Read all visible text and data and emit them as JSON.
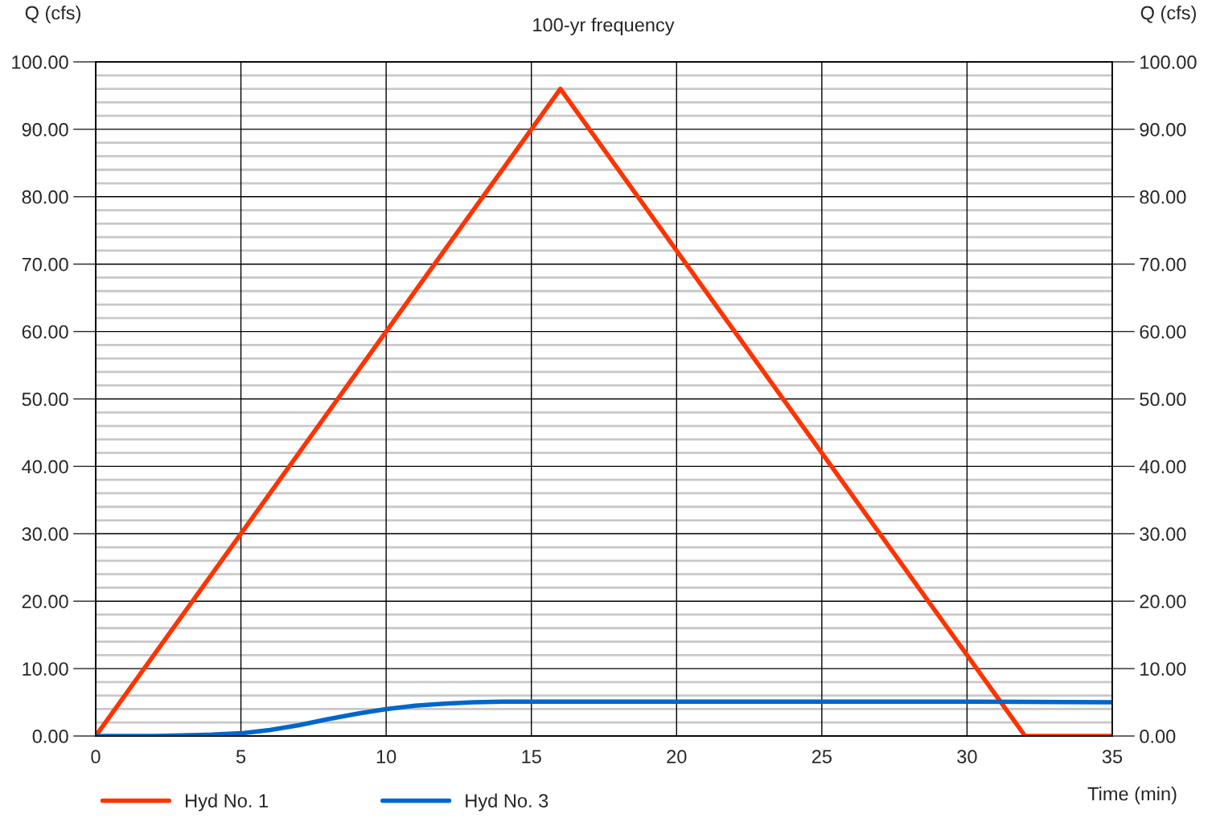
{
  "chart_data": {
    "type": "line",
    "subtitle": "100-yr frequency",
    "xlabel": "Time (min)",
    "ylabel": "Q (cfs)",
    "y2label": "Q (cfs)",
    "xlim": [
      0,
      35
    ],
    "xticks": [
      0,
      5,
      10,
      15,
      20,
      25,
      30,
      35
    ],
    "ylim": [
      0,
      100
    ],
    "yticks": [
      {
        "value": 0,
        "label": "0.00"
      },
      {
        "value": 2,
        "label": null
      },
      {
        "value": 4,
        "label": null
      },
      {
        "value": 6,
        "label": null
      },
      {
        "value": 8,
        "label": null
      },
      {
        "value": 10,
        "label": "10.00"
      },
      {
        "value": 12,
        "label": null
      },
      {
        "value": 14,
        "label": null
      },
      {
        "value": 16,
        "label": null
      },
      {
        "value": 18,
        "label": null
      },
      {
        "value": 20,
        "label": "20.00"
      },
      {
        "value": 22,
        "label": null
      },
      {
        "value": 24,
        "label": null
      },
      {
        "value": 26,
        "label": null
      },
      {
        "value": 28,
        "label": null
      },
      {
        "value": 30,
        "label": "30.00"
      },
      {
        "value": 32,
        "label": null
      },
      {
        "value": 34,
        "label": null
      },
      {
        "value": 36,
        "label": null
      },
      {
        "value": 38,
        "label": null
      },
      {
        "value": 40,
        "label": "40.00"
      },
      {
        "value": 42,
        "label": null
      },
      {
        "value": 44,
        "label": null
      },
      {
        "value": 46,
        "label": null
      },
      {
        "value": 48,
        "label": null
      },
      {
        "value": 50,
        "label": "50.00"
      },
      {
        "value": 52,
        "label": null
      },
      {
        "value": 54,
        "label": null
      },
      {
        "value": 56,
        "label": null
      },
      {
        "value": 58,
        "label": null
      },
      {
        "value": 60,
        "label": "60.00"
      },
      {
        "value": 62,
        "label": null
      },
      {
        "value": 64,
        "label": null
      },
      {
        "value": 66,
        "label": null
      },
      {
        "value": 68,
        "label": null
      },
      {
        "value": 70,
        "label": "70.00"
      },
      {
        "value": 72,
        "label": null
      },
      {
        "value": 74,
        "label": null
      },
      {
        "value": 76,
        "label": null
      },
      {
        "value": 78,
        "label": null
      },
      {
        "value": 80,
        "label": "80.00"
      },
      {
        "value": 82,
        "label": null
      },
      {
        "value": 84,
        "label": null
      },
      {
        "value": 86,
        "label": null
      },
      {
        "value": 88,
        "label": null
      },
      {
        "value": 90,
        "label": "90.00"
      },
      {
        "value": 92,
        "label": null
      },
      {
        "value": 94,
        "label": null
      },
      {
        "value": 96,
        "label": null
      },
      {
        "value": 98,
        "label": null
      },
      {
        "value": 100,
        "label": "100.00"
      }
    ],
    "y2lim": [
      0,
      100
    ],
    "y2ticks": [
      {
        "value": 0,
        "label": "0.00"
      },
      {
        "value": 10,
        "label": "10.00"
      },
      {
        "value": 20,
        "label": "20.00"
      },
      {
        "value": 30,
        "label": "30.00"
      },
      {
        "value": 40,
        "label": "40.00"
      },
      {
        "value": 50,
        "label": "50.00"
      },
      {
        "value": 60,
        "label": "60.00"
      },
      {
        "value": 70,
        "label": "70.00"
      },
      {
        "value": 80,
        "label": "80.00"
      },
      {
        "value": 90,
        "label": "90.00"
      },
      {
        "value": 100,
        "label": "100.00"
      }
    ],
    "grid": true,
    "legend": "bottom left",
    "marker": "none",
    "line_style": "solid",
    "series": [
      {
        "name": "Hyd No. 1",
        "color": "#ff3300",
        "x": [
          0,
          16,
          32,
          35
        ],
        "values": [
          0,
          96,
          0,
          0
        ]
      },
      {
        "name": "Hyd No. 3",
        "color": "#0066cc",
        "x": [
          0,
          2,
          4,
          5,
          6,
          7,
          8,
          9,
          10,
          11,
          12,
          13,
          14,
          15,
          20,
          25,
          30,
          35
        ],
        "values": [
          0,
          0,
          0.2,
          0.4,
          0.9,
          1.6,
          2.5,
          3.3,
          4.0,
          4.5,
          4.8,
          5.0,
          5.1,
          5.1,
          5.1,
          5.1,
          5.1,
          5.0
        ]
      }
    ]
  }
}
